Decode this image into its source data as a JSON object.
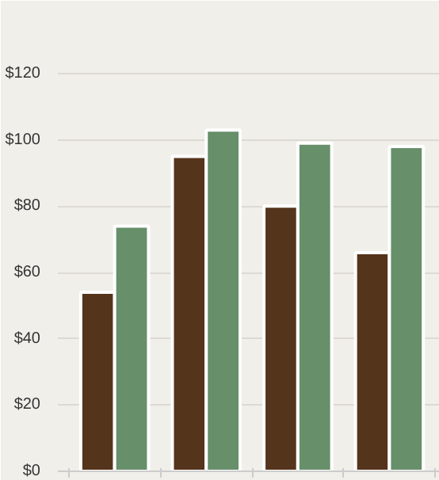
{
  "chart_data": {
    "type": "bar",
    "categories": [
      null,
      null,
      null,
      null
    ],
    "series": [
      {
        "color": "#55341c",
        "values": [
          54,
          95,
          80,
          66
        ]
      },
      {
        "color": "#668f6a",
        "values": [
          74,
          103,
          99,
          98
        ]
      }
    ],
    "ylim": [
      0,
      142
    ],
    "yticks": [
      {
        "value": 0,
        "label": "$0"
      },
      {
        "value": 20,
        "label": "$20"
      },
      {
        "value": 40,
        "label": "$40"
      },
      {
        "value": 60,
        "label": "$60"
      },
      {
        "value": 80,
        "label": "$80"
      },
      {
        "value": 100,
        "label": "$100"
      },
      {
        "value": 120,
        "label": "$120"
      }
    ],
    "grid": "y"
  }
}
